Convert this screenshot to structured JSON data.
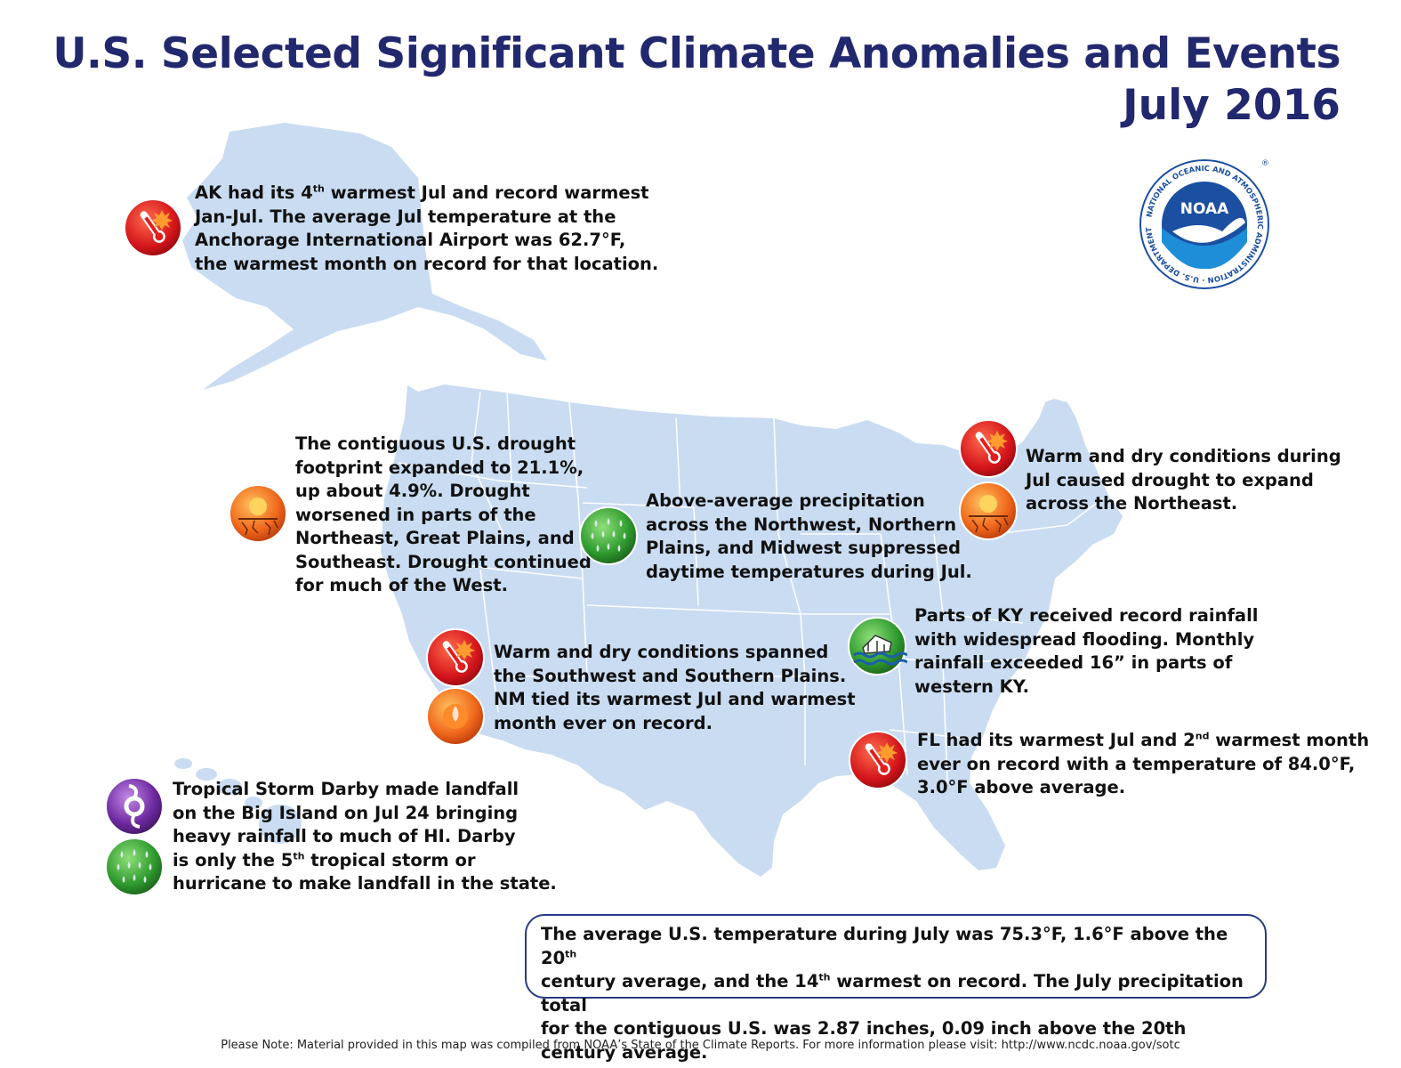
{
  "header": {
    "title": "U.S. Selected Significant Climate Anomalies and Events",
    "subtitle": "July 2016"
  },
  "logo": {
    "brand_text": "NOAA",
    "ring_text": "NATIONAL OCEANIC AND ATMOSPHERIC ADMINISTRATION · U.S. DEPARTMENT OF COMMERCE ·",
    "registered_mark": "®",
    "color": "#1b4fa1"
  },
  "colors": {
    "land": "#c9dcf1",
    "state_lines": "#ffffff",
    "title": "#22286e",
    "box_border": "#2b3a85"
  },
  "events": {
    "alaska": {
      "l1a": "AK had its 4",
      "l1sup": "th",
      "l1b": " warmest Jul and record warmest",
      "l2": "Jan-Jul. The average Jul temperature at the",
      "l3": "Anchorage International Airport was 62.7°F,",
      "l4": "the warmest month on record for that location.",
      "icons": [
        "warm-thermometer-icon"
      ]
    },
    "drought": {
      "l1": "The contiguous U.S. drought",
      "l2": "footprint expanded to 21.1%,",
      "l3": "up about 4.9%. Drought",
      "l4": "worsened in parts of the",
      "l5": "Northeast, Great Plains, and",
      "l6": "Southeast. Drought continued",
      "l7": "for much of the West.",
      "icons": [
        "drought-icon"
      ]
    },
    "precip": {
      "l1": "Above-average precipitation",
      "l2": "across the Northwest, Northern",
      "l3": "Plains, and Midwest suppressed",
      "l4": "daytime temperatures during Jul.",
      "icons": [
        "wet-rain-icon"
      ]
    },
    "northeast": {
      "l1": "Warm and dry conditions during",
      "l2": "Jul caused drought to expand",
      "l3": "across the Northeast.",
      "icons": [
        "warm-thermometer-icon",
        "drought-icon"
      ]
    },
    "southwest": {
      "l1": "Warm and dry conditions spanned",
      "l2": "the Southwest and Southern Plains.",
      "l3": "NM tied its warmest Jul and warmest",
      "l4": "month ever on record.",
      "icons": [
        "warm-thermometer-icon",
        "dry-icon"
      ]
    },
    "kentucky": {
      "l1": "Parts of KY received record rainfall",
      "l2": "with widespread flooding. Monthly",
      "l3": "rainfall exceeded 16” in parts of",
      "l4": "western KY.",
      "icons": [
        "flood-icon"
      ]
    },
    "florida": {
      "l1a": "FL had its warmest Jul and 2",
      "l1sup": "nd",
      "l1b": " warmest month",
      "l2": "ever on record with a temperature of 84.0°F,",
      "l3": "3.0°F above average.",
      "icons": [
        "warm-thermometer-icon"
      ]
    },
    "hawaii": {
      "l1": "Tropical Storm Darby made landfall",
      "l2": "on the Big Island on Jul 24 bringing",
      "l3": "heavy rainfall to much of HI. Darby",
      "l4a": "is only the 5",
      "l4sup": "th",
      "l4b": " tropical storm or",
      "l5": "hurricane to make landfall in the state.",
      "icons": [
        "tropical-storm-icon",
        "wet-rain-icon"
      ]
    }
  },
  "summary": {
    "l1a": "The average U.S. temperature during July was 75.3°F, 1.6°F above the 20",
    "l1sup": "th",
    "l2a": "century average, and the 14",
    "l2sup": "th",
    "l2b": " warmest on record.  The July precipitation total",
    "l3": "for the contiguous U.S. was 2.87 inches, 0.09 inch above the 20th century average."
  },
  "footer": {
    "note": "Please Note: Material provided in this map was compiled from NOAA’s State of the Climate Reports. For more information please visit: http://www.ncdc.noaa.gov/sotc"
  }
}
